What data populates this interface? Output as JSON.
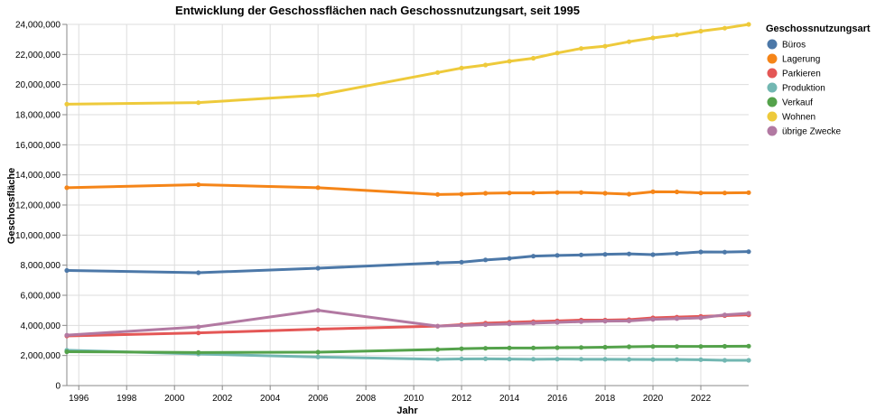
{
  "chart_data": {
    "type": "line",
    "title": "Entwicklung der Geschossflächen nach Geschossnutzungsart, seit 1995",
    "xlabel": "Jahr",
    "ylabel": "Geschossfläche",
    "x_ticks": [
      "1996",
      "1998",
      "2000",
      "2002",
      "2004",
      "2006",
      "2008",
      "2010",
      "2012",
      "2014",
      "2016",
      "2018",
      "2020",
      "2022"
    ],
    "y_ticks": [
      "0",
      "2,000,000",
      "4,000,000",
      "6,000,000",
      "8,000,000",
      "10,000,000",
      "12,000,000",
      "14,000,000",
      "16,000,000",
      "18,000,000",
      "20,000,000",
      "22,000,000",
      "24,000,000"
    ],
    "xlim": [
      1995.5,
      2024
    ],
    "ylim": [
      0,
      24000000
    ],
    "grid": true,
    "legend_title": "Geschossnutzungsart",
    "legend_position": "right",
    "x": [
      1995.5,
      2001,
      2006,
      2011,
      2012,
      2013,
      2014,
      2015,
      2016,
      2017,
      2018,
      2019,
      2020,
      2021,
      2022,
      2023,
      2024
    ],
    "series": [
      {
        "name": "Büros",
        "color": "#4c78a8",
        "values": [
          7650000,
          7500000,
          7800000,
          8150000,
          8200000,
          8350000,
          8450000,
          8600000,
          8650000,
          8680000,
          8720000,
          8750000,
          8700000,
          8780000,
          8880000,
          8870000,
          8900000
        ]
      },
      {
        "name": "Lagerung",
        "color": "#f58518",
        "values": [
          13150000,
          13350000,
          13150000,
          12700000,
          12720000,
          12780000,
          12800000,
          12800000,
          12830000,
          12830000,
          12780000,
          12720000,
          12880000,
          12870000,
          12800000,
          12800000,
          12820000
        ]
      },
      {
        "name": "Parkieren",
        "color": "#e45756",
        "values": [
          3300000,
          3500000,
          3750000,
          3950000,
          4050000,
          4150000,
          4200000,
          4250000,
          4300000,
          4350000,
          4350000,
          4380000,
          4500000,
          4550000,
          4600000,
          4650000,
          4700000
        ]
      },
      {
        "name": "Produktion",
        "color": "#72b7b2",
        "values": [
          2350000,
          2100000,
          1900000,
          1750000,
          1770000,
          1780000,
          1760000,
          1750000,
          1760000,
          1750000,
          1750000,
          1740000,
          1730000,
          1730000,
          1720000,
          1680000,
          1680000
        ]
      },
      {
        "name": "Verkauf",
        "color": "#54a24b",
        "values": [
          2250000,
          2200000,
          2220000,
          2400000,
          2450000,
          2480000,
          2500000,
          2500000,
          2520000,
          2530000,
          2550000,
          2580000,
          2600000,
          2600000,
          2600000,
          2610000,
          2620000
        ]
      },
      {
        "name": "Wohnen",
        "color": "#eeca3b",
        "values": [
          18700000,
          18800000,
          19300000,
          20800000,
          21100000,
          21300000,
          21550000,
          21750000,
          22100000,
          22400000,
          22550000,
          22850000,
          23100000,
          23300000,
          23550000,
          23750000,
          24000000
        ]
      },
      {
        "name": "übrige Zwecke",
        "color": "#b279a2",
        "values": [
          3350000,
          3900000,
          5000000,
          3950000,
          4000000,
          4050000,
          4100000,
          4150000,
          4200000,
          4250000,
          4280000,
          4300000,
          4400000,
          4450000,
          4500000,
          4700000,
          4800000
        ]
      }
    ]
  }
}
